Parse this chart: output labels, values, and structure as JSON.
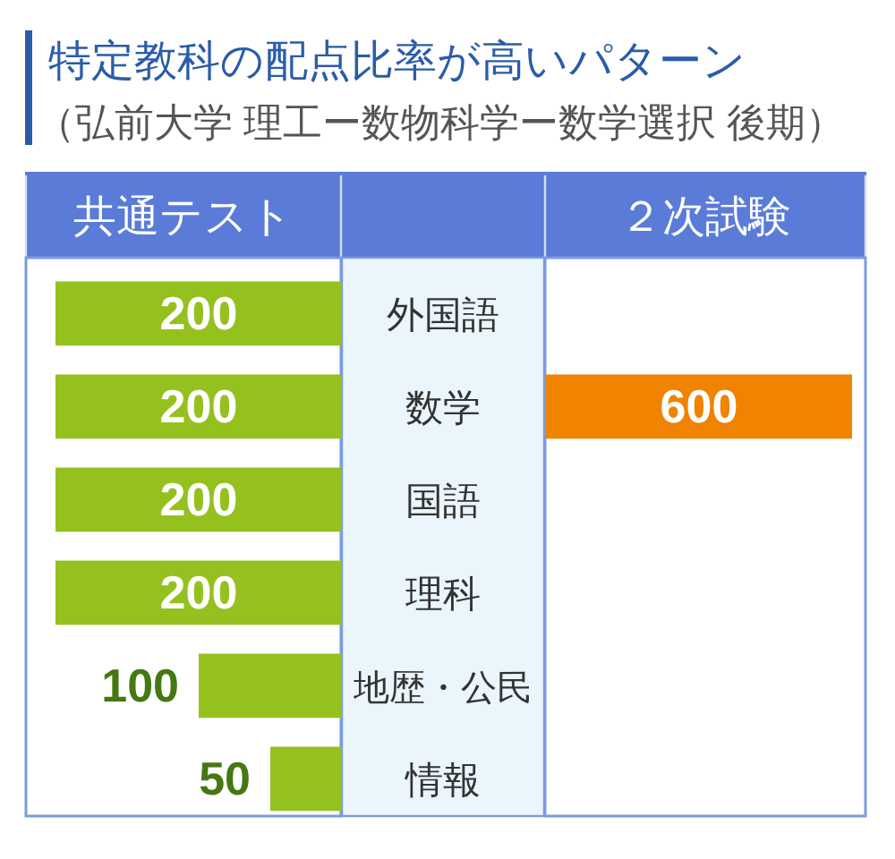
{
  "chart_data": [
    {
      "type": "bar",
      "orientation": "horizontal",
      "title": "特定教科の配点比率が高いパターン",
      "subtitle": "（弘前大学 理工ー数物科学ー数学選択 後期）",
      "categories": [
        "外国語",
        "数学",
        "国語",
        "理科",
        "地歴・公民",
        "情報"
      ],
      "series": [
        {
          "name": "共通テスト",
          "color": "#95c11f",
          "values": [
            200,
            200,
            200,
            200,
            100,
            50
          ]
        }
      ],
      "data_labels": true,
      "tick_labels": "y"
    },
    {
      "type": "bar",
      "orientation": "horizontal",
      "categories": [
        null,
        null,
        null,
        null,
        null,
        null
      ],
      "series": [
        {
          "name": "２次試験",
          "color": "#f08300",
          "values": [
            null,
            600,
            null,
            null,
            null,
            null
          ]
        }
      ],
      "data_labels": true
    }
  ]
}
